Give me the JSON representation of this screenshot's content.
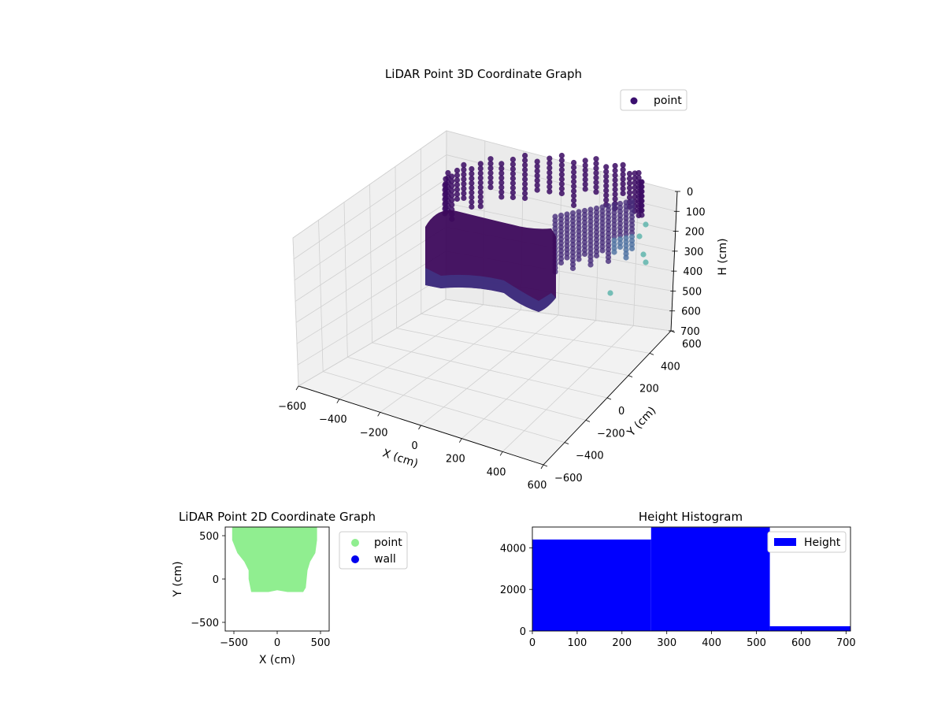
{
  "chart_data": [
    {
      "type": "scatter3d",
      "title": "LiDAR Point 3D Coordinate Graph",
      "xlabel": "X (cm)",
      "ylabel": "Y (cm)",
      "zlabel": "H (cm)",
      "xlim": [
        -600,
        600
      ],
      "ylim": [
        -600,
        600
      ],
      "zlim": [
        0,
        700
      ],
      "z_inverted": true,
      "x_ticks": [
        "−600",
        "−400",
        "−200",
        "0",
        "200",
        "400",
        "600"
      ],
      "y_ticks": [
        "−600",
        "−400",
        "−200",
        "0",
        "200",
        "400",
        "600"
      ],
      "z_ticks": [
        "0",
        "100",
        "200",
        "300",
        "400",
        "500",
        "600",
        "700"
      ],
      "legend": {
        "placement": "top-right",
        "entries": [
          {
            "label": "point",
            "color": "#3b0f6f"
          }
        ]
      },
      "colors": {
        "dark": "#3b0a63",
        "mid": "#472d7b",
        "light": "#5fb5ad"
      },
      "grid": true
    },
    {
      "type": "scatter",
      "title": "LiDAR Point 2D Coordinate Graph",
      "xlabel": "X (cm)",
      "ylabel": "Y (cm)",
      "xlim": [
        -600,
        600
      ],
      "ylim": [
        -600,
        600
      ],
      "x_ticks": [
        "−500",
        "0",
        "500"
      ],
      "y_ticks": [
        "−500",
        "0",
        "500"
      ],
      "legend": {
        "placement": "outside-right",
        "entries": [
          {
            "label": "point",
            "color": "#90ee90"
          },
          {
            "label": "wall",
            "color": "#0000ee"
          }
        ]
      },
      "series": [
        {
          "name": "point",
          "color": "#90ee90",
          "outline": [
            [
              -520,
              600
            ],
            [
              -520,
              450
            ],
            [
              -460,
              300
            ],
            [
              -380,
              200
            ],
            [
              -330,
              100
            ],
            [
              -330,
              0
            ],
            [
              -310,
              -100
            ],
            [
              -300,
              -150
            ],
            [
              -100,
              -150
            ],
            [
              0,
              -130
            ],
            [
              120,
              -150
            ],
            [
              300,
              -150
            ],
            [
              330,
              -100
            ],
            [
              340,
              0
            ],
            [
              350,
              100
            ],
            [
              380,
              200
            ],
            [
              440,
              300
            ],
            [
              460,
              450
            ],
            [
              460,
              600
            ]
          ]
        },
        {
          "name": "wall",
          "color": "#0000ee",
          "points": []
        }
      ]
    },
    {
      "type": "histogram",
      "title": "Height Histogram",
      "xlim": [
        0,
        710
      ],
      "ylim": [
        0,
        5000
      ],
      "x_ticks": [
        "0",
        "100",
        "200",
        "300",
        "400",
        "500",
        "600",
        "700"
      ],
      "y_ticks": [
        "0",
        "2000",
        "4000"
      ],
      "bins": [
        {
          "start": 0,
          "end": 265,
          "count": 4400
        },
        {
          "start": 265,
          "end": 530,
          "count": 4980
        },
        {
          "start": 530,
          "end": 710,
          "count": 230
        }
      ],
      "color": "#0000ff",
      "legend": {
        "placement": "top-right",
        "entries": [
          {
            "label": "Height",
            "color": "#0000ff"
          }
        ]
      }
    }
  ]
}
